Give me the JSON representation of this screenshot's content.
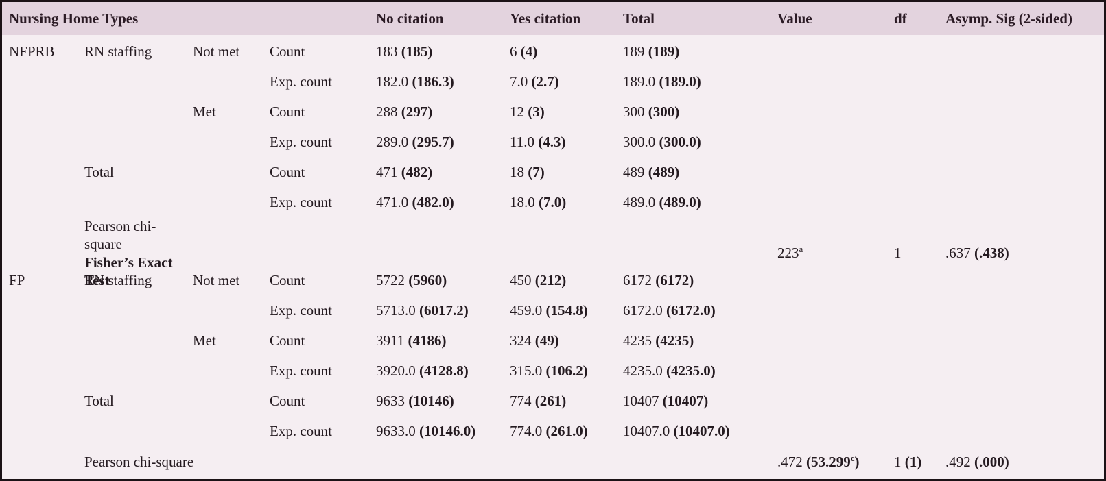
{
  "colors": {
    "border": "#1b1216",
    "header_background": "#e3d3de",
    "body_background": "#f5eef2",
    "text": "#241a20"
  },
  "table": {
    "columns": {
      "span_header": "Nursing Home Types",
      "data_headers": [
        "No citation",
        "Yes citation",
        "Total",
        "Value",
        "df",
        "Asymp. Sig (2-sided)"
      ]
    },
    "footnote_markers": [
      "a",
      "c"
    ],
    "rows": [
      {
        "group": "NFPRB",
        "label": "RN staffing",
        "condition": "Not met",
        "stat": "Count",
        "no": "183 (185)",
        "yes": "6 (4)",
        "total": "189 (189)",
        "value": "",
        "df": "",
        "sig": ""
      },
      {
        "group": "",
        "label": "",
        "condition": "",
        "stat": "Exp. count",
        "no": "182.0 (186.3)",
        "yes": "7.0 (2.7)",
        "total": "189.0 (189.0)",
        "value": "",
        "df": "",
        "sig": ""
      },
      {
        "group": "",
        "label": "",
        "condition": "Met",
        "stat": "Count",
        "no": "288 (297)",
        "yes": "12 (3)",
        "total": "300 (300)",
        "value": "",
        "df": "",
        "sig": ""
      },
      {
        "group": "",
        "label": "",
        "condition": "",
        "stat": "Exp. count",
        "no": "289.0 (295.7)",
        "yes": "11.0 (4.3)",
        "total": "300.0 (300.0)",
        "value": "",
        "df": "",
        "sig": ""
      },
      {
        "group": "",
        "label": "Total",
        "condition": "",
        "stat": "Count",
        "no": "471 (482)",
        "yes": "18 (7)",
        "total": "489 (489)",
        "value": "",
        "df": "",
        "sig": ""
      },
      {
        "group": "",
        "label": "",
        "condition": "",
        "stat": "Exp. count",
        "no": "471.0 (482.0)",
        "yes": "18.0 (7.0)",
        "total": "489.0 (489.0)",
        "value": "",
        "df": "",
        "sig": ""
      },
      {
        "group": "",
        "label": "Pearson chi-square",
        "label2": "Fisher’s Exact Test",
        "condition": "",
        "stat": "",
        "no": "",
        "yes": "",
        "total": "",
        "value": "223^a",
        "df": "1",
        "sig": ".637 (.438)"
      },
      {
        "group": "FP",
        "label": "RN staffing",
        "condition": "Not met",
        "stat": "Count",
        "no": "5722 (5960)",
        "yes": "450 (212)",
        "total": "6172 (6172)",
        "value": "",
        "df": "",
        "sig": ""
      },
      {
        "group": "",
        "label": "",
        "condition": "",
        "stat": "Exp. count",
        "no": "5713.0 (6017.2)",
        "yes": "459.0 (154.8)",
        "total": "6172.0 (6172.0)",
        "value": "",
        "df": "",
        "sig": ""
      },
      {
        "group": "",
        "label": "",
        "condition": "Met",
        "stat": "Count",
        "no": "3911 (4186)",
        "yes": "324 (49)",
        "total": "4235 (4235)",
        "value": "",
        "df": "",
        "sig": ""
      },
      {
        "group": "",
        "label": "",
        "condition": "",
        "stat": "Exp. count",
        "no": "3920.0 (4128.8)",
        "yes": "315.0 (106.2)",
        "total": "4235.0 (4235.0)",
        "value": "",
        "df": "",
        "sig": ""
      },
      {
        "group": "",
        "label": "Total",
        "condition": "",
        "stat": "Count",
        "no": "9633 (10146)",
        "yes": "774 (261)",
        "total": "10407 (10407)",
        "value": "",
        "df": "",
        "sig": ""
      },
      {
        "group": "",
        "label": "",
        "condition": "",
        "stat": "Exp. count",
        "no": "9633.0 (10146.0)",
        "yes": "774.0 (261.0)",
        "total": "10407.0 (10407.0)",
        "value": "",
        "df": "",
        "sig": ""
      },
      {
        "group": "",
        "label": "Pearson chi-square",
        "condition": "",
        "stat": "",
        "no": "",
        "yes": "",
        "total": "",
        "value": ".472 (53.299^c)",
        "df": "1 (1)",
        "sig": ".492 (.000)"
      }
    ]
  }
}
